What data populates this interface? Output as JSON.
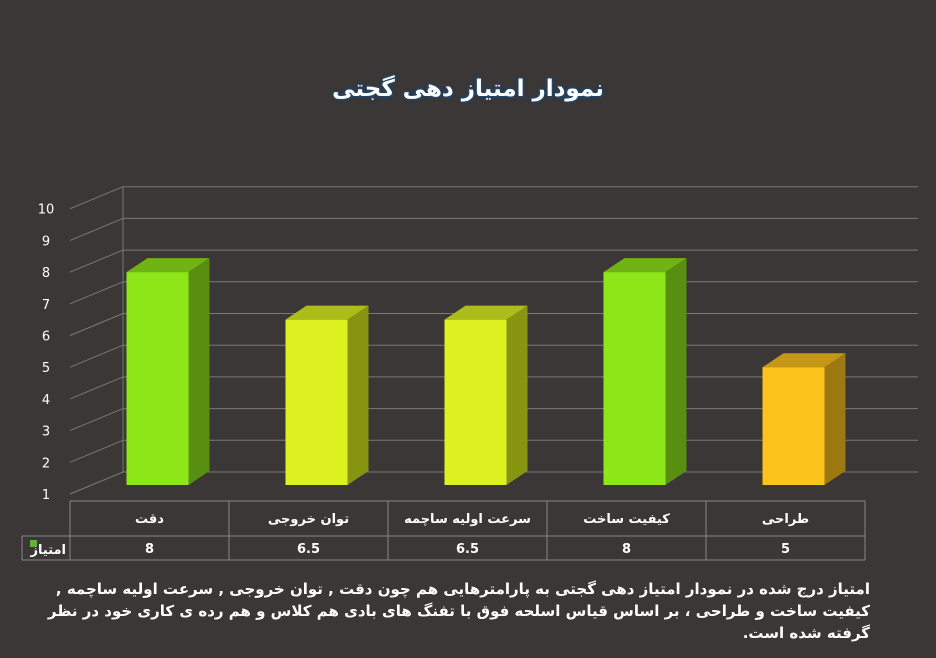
{
  "chart_data": {
    "type": "bar",
    "title": "نمودار امتیاز دهی گجتی",
    "categories": [
      "دقت",
      "توان خروجی",
      "سرعت اولیه ساچمه",
      "کیفیت ساخت",
      "طراحی"
    ],
    "series": [
      {
        "name": "امتیاز",
        "values": [
          8,
          6.5,
          6.5,
          8,
          5
        ]
      }
    ],
    "value_labels": [
      "8",
      "6.5",
      "6.5",
      "8",
      "5"
    ],
    "yticks": [
      "1",
      "2",
      "3",
      "4",
      "5",
      "6",
      "7",
      "8",
      "9",
      "10"
    ],
    "ylim": [
      1,
      10
    ],
    "grid": true,
    "legend": "data-table",
    "bar_colors": [
      "#8ee619",
      "#dcf11f",
      "#dcf11f",
      "#8ee619",
      "#fbc31c"
    ],
    "legend_color": "#5fb33a"
  },
  "description": "امتیاز درج شده در نمودار امتیاز دهی گجتی  به پارامترهایی هم چون دقت , توان خروجی , سرعت اولیه ساچمه , کیفیت ساخت و طراحی ، بر اساس قیاس اسلحه فوق با تفنگ های بادی هم کلاس و هم رده ی کاری خود در نظر گرفته شده است."
}
